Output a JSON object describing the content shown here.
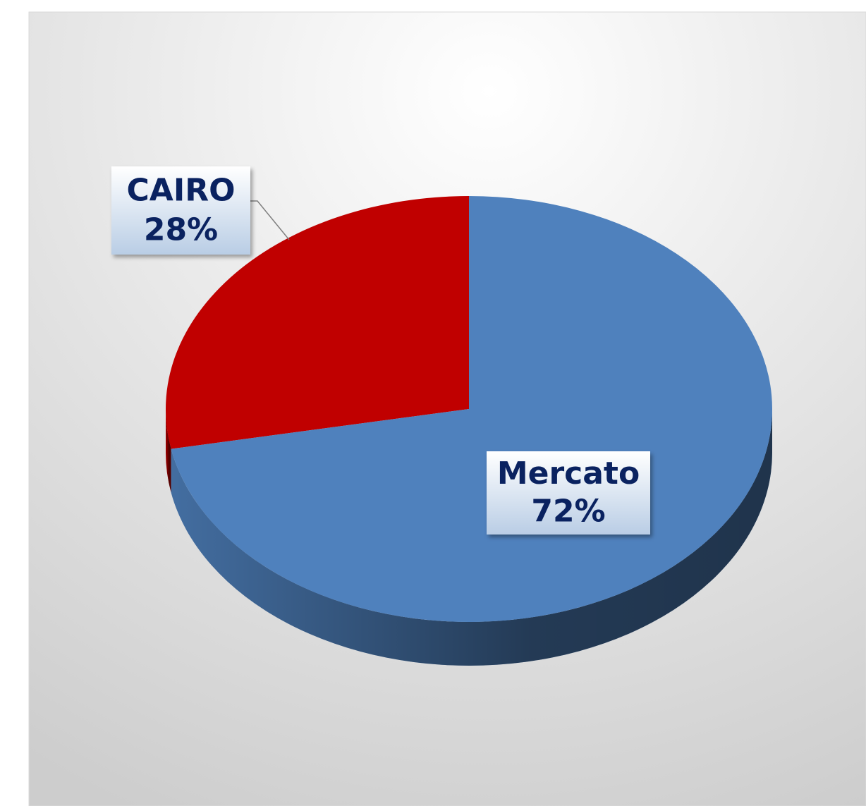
{
  "chart_data": {
    "type": "pie",
    "categories": [
      "CAIRO",
      "Mercato"
    ],
    "values": [
      28,
      72
    ],
    "value_labels": [
      "28%",
      "72%"
    ],
    "colors": [
      "#c00000",
      "#4f81bd"
    ]
  }
}
